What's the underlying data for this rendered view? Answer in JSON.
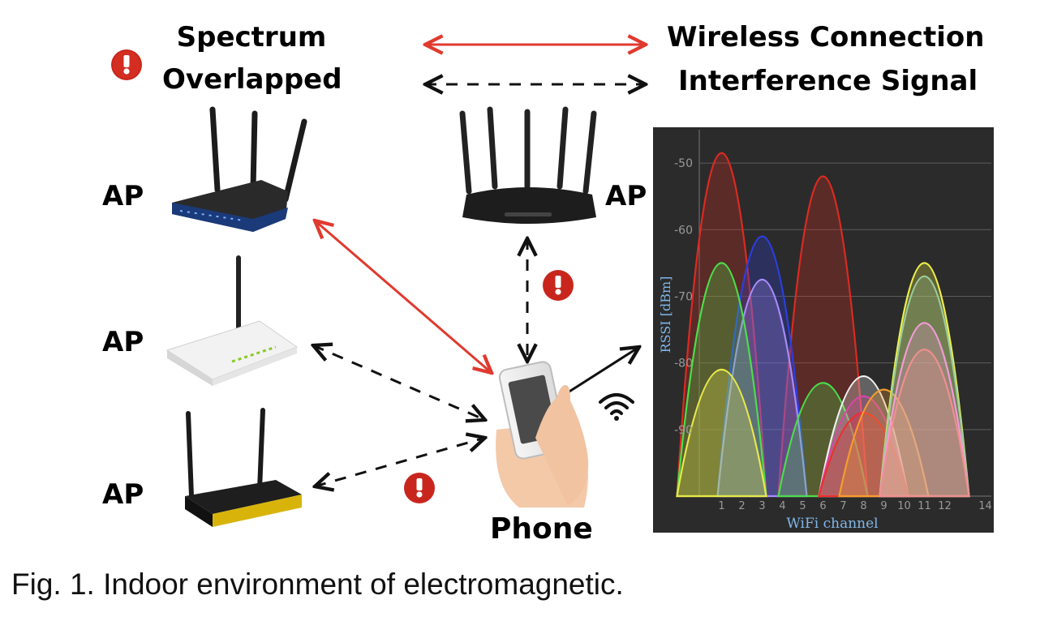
{
  "legend": {
    "spectrum_line1": "Spectrum",
    "spectrum_line2": "Overlapped",
    "wireless_connection": "Wireless Connection",
    "interference_signal": "Interference Signal"
  },
  "devices": {
    "ap_label": "AP",
    "phone_label": "Phone"
  },
  "colors": {
    "wireless": "#e03a2f",
    "interference": "#111111",
    "warning": "#c8261d",
    "chart_bg": "#2b2b2b"
  },
  "icons": [
    "warning-icon",
    "router-icon",
    "phone-icon",
    "wifi-icon"
  ],
  "chart_data": {
    "type": "area",
    "xlabel": "WiFi channel",
    "ylabel": "RSSI [dBm]",
    "x_ticks": [
      1,
      2,
      3,
      4,
      5,
      6,
      7,
      8,
      9,
      10,
      11,
      12,
      14
    ],
    "x_range": [
      -0.1,
      14.3
    ],
    "y_ticks": [
      -50,
      -60,
      -70,
      -80,
      -90
    ],
    "ylim": [
      -100,
      -45
    ],
    "grid": true,
    "series": [
      {
        "center": 1,
        "peak": -48.5,
        "color": "#d92b22"
      },
      {
        "center": 6,
        "peak": -52,
        "color": "#d92b22"
      },
      {
        "center": 3,
        "peak": -61,
        "color": "#2b3ee0"
      },
      {
        "center": 3,
        "peak": -67.5,
        "color": "#a78bfa"
      },
      {
        "center": 1,
        "peak": -65,
        "color": "#4ade4a"
      },
      {
        "center": 1,
        "peak": -81,
        "color": "#e8e84a"
      },
      {
        "center": 6,
        "peak": -83,
        "color": "#4ade4a"
      },
      {
        "center": 8,
        "peak": -82,
        "color": "#f2f2f2"
      },
      {
        "center": 8,
        "peak": -85,
        "color": "#d946a6"
      },
      {
        "center": 8,
        "peak": -87.5,
        "color": "#ee2f2f"
      },
      {
        "center": 9,
        "peak": -84,
        "color": "#f59e2b"
      },
      {
        "center": 11,
        "peak": -65,
        "color": "#eef04a"
      },
      {
        "center": 11,
        "peak": -67,
        "color": "#9ccc9c"
      },
      {
        "center": 11,
        "peak": -74,
        "color": "#f29bd8"
      },
      {
        "center": 11,
        "peak": -78,
        "color": "#f08f8f"
      }
    ]
  },
  "caption": "Fig. 1. Indoor environment of electromagnetic."
}
